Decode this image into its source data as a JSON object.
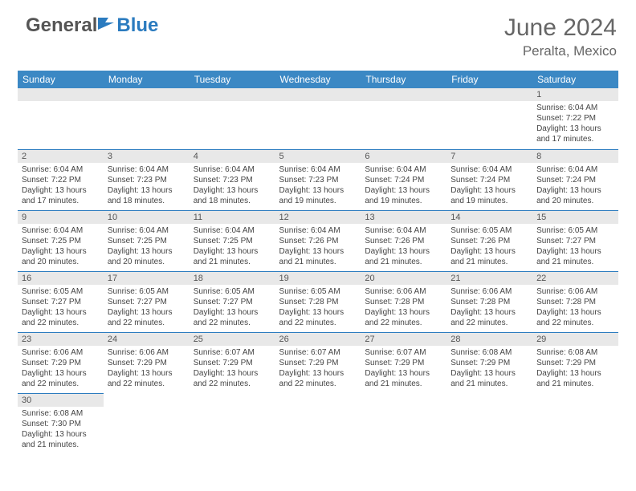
{
  "logo": {
    "general": "General",
    "blue": "Blue"
  },
  "title": "June 2024",
  "location": "Peralta, Mexico",
  "colors": {
    "header_bg": "#3b88c4",
    "rule": "#2b7bbf",
    "daynum_bg": "#e8e8e8",
    "text": "#555555"
  },
  "weekdays": [
    "Sunday",
    "Monday",
    "Tuesday",
    "Wednesday",
    "Thursday",
    "Friday",
    "Saturday"
  ],
  "weeks": [
    [
      null,
      null,
      null,
      null,
      null,
      null,
      {
        "n": "1",
        "sr": "6:04 AM",
        "ss": "7:22 PM",
        "dh": "13",
        "dm": "17"
      }
    ],
    [
      {
        "n": "2",
        "sr": "6:04 AM",
        "ss": "7:22 PM",
        "dh": "13",
        "dm": "17"
      },
      {
        "n": "3",
        "sr": "6:04 AM",
        "ss": "7:23 PM",
        "dh": "13",
        "dm": "18"
      },
      {
        "n": "4",
        "sr": "6:04 AM",
        "ss": "7:23 PM",
        "dh": "13",
        "dm": "18"
      },
      {
        "n": "5",
        "sr": "6:04 AM",
        "ss": "7:23 PM",
        "dh": "13",
        "dm": "19"
      },
      {
        "n": "6",
        "sr": "6:04 AM",
        "ss": "7:24 PM",
        "dh": "13",
        "dm": "19"
      },
      {
        "n": "7",
        "sr": "6:04 AM",
        "ss": "7:24 PM",
        "dh": "13",
        "dm": "19"
      },
      {
        "n": "8",
        "sr": "6:04 AM",
        "ss": "7:24 PM",
        "dh": "13",
        "dm": "20"
      }
    ],
    [
      {
        "n": "9",
        "sr": "6:04 AM",
        "ss": "7:25 PM",
        "dh": "13",
        "dm": "20"
      },
      {
        "n": "10",
        "sr": "6:04 AM",
        "ss": "7:25 PM",
        "dh": "13",
        "dm": "20"
      },
      {
        "n": "11",
        "sr": "6:04 AM",
        "ss": "7:25 PM",
        "dh": "13",
        "dm": "21"
      },
      {
        "n": "12",
        "sr": "6:04 AM",
        "ss": "7:26 PM",
        "dh": "13",
        "dm": "21"
      },
      {
        "n": "13",
        "sr": "6:04 AM",
        "ss": "7:26 PM",
        "dh": "13",
        "dm": "21"
      },
      {
        "n": "14",
        "sr": "6:05 AM",
        "ss": "7:26 PM",
        "dh": "13",
        "dm": "21"
      },
      {
        "n": "15",
        "sr": "6:05 AM",
        "ss": "7:27 PM",
        "dh": "13",
        "dm": "21"
      }
    ],
    [
      {
        "n": "16",
        "sr": "6:05 AM",
        "ss": "7:27 PM",
        "dh": "13",
        "dm": "22"
      },
      {
        "n": "17",
        "sr": "6:05 AM",
        "ss": "7:27 PM",
        "dh": "13",
        "dm": "22"
      },
      {
        "n": "18",
        "sr": "6:05 AM",
        "ss": "7:27 PM",
        "dh": "13",
        "dm": "22"
      },
      {
        "n": "19",
        "sr": "6:05 AM",
        "ss": "7:28 PM",
        "dh": "13",
        "dm": "22"
      },
      {
        "n": "20",
        "sr": "6:06 AM",
        "ss": "7:28 PM",
        "dh": "13",
        "dm": "22"
      },
      {
        "n": "21",
        "sr": "6:06 AM",
        "ss": "7:28 PM",
        "dh": "13",
        "dm": "22"
      },
      {
        "n": "22",
        "sr": "6:06 AM",
        "ss": "7:28 PM",
        "dh": "13",
        "dm": "22"
      }
    ],
    [
      {
        "n": "23",
        "sr": "6:06 AM",
        "ss": "7:29 PM",
        "dh": "13",
        "dm": "22"
      },
      {
        "n": "24",
        "sr": "6:06 AM",
        "ss": "7:29 PM",
        "dh": "13",
        "dm": "22"
      },
      {
        "n": "25",
        "sr": "6:07 AM",
        "ss": "7:29 PM",
        "dh": "13",
        "dm": "22"
      },
      {
        "n": "26",
        "sr": "6:07 AM",
        "ss": "7:29 PM",
        "dh": "13",
        "dm": "22"
      },
      {
        "n": "27",
        "sr": "6:07 AM",
        "ss": "7:29 PM",
        "dh": "13",
        "dm": "21"
      },
      {
        "n": "28",
        "sr": "6:08 AM",
        "ss": "7:29 PM",
        "dh": "13",
        "dm": "21"
      },
      {
        "n": "29",
        "sr": "6:08 AM",
        "ss": "7:29 PM",
        "dh": "13",
        "dm": "21"
      }
    ],
    [
      {
        "n": "30",
        "sr": "6:08 AM",
        "ss": "7:30 PM",
        "dh": "13",
        "dm": "21"
      },
      null,
      null,
      null,
      null,
      null,
      null
    ]
  ],
  "labels": {
    "sunrise": "Sunrise:",
    "sunset": "Sunset:",
    "daylight": "Daylight:",
    "hours": "hours",
    "and": "and",
    "minutes": "minutes."
  }
}
